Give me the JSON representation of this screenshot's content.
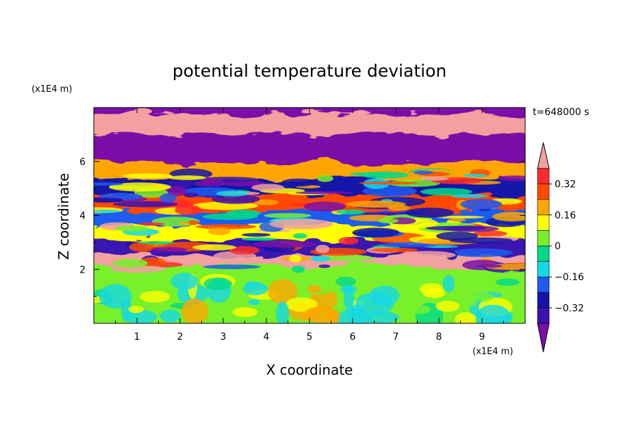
{
  "chart_data": {
    "type": "heatmap",
    "title": "potential temperature deviation",
    "xlabel": "X coordinate",
    "ylabel": "Z coordinate",
    "x_unit": "(x1E4 m)",
    "y_unit": "(x1E4 m)",
    "time_label": "t=648000 s",
    "xlim": [
      0,
      10
    ],
    "ylim": [
      0,
      8
    ],
    "x_ticks": [
      "1",
      "2",
      "3",
      "4",
      "5",
      "6",
      "7",
      "8",
      "9"
    ],
    "y_ticks": [
      "2",
      "4",
      "6"
    ],
    "colorbar": {
      "levels": [
        -0.4,
        -0.32,
        -0.24,
        -0.16,
        -0.08,
        0,
        0.08,
        0.16,
        0.24,
        0.32,
        0.4
      ],
      "tick_labels": [
        "0.32",
        "0.16",
        "0",
        "−0.16",
        "−0.32"
      ],
      "tick_values": [
        0.32,
        0.16,
        0,
        -0.16,
        -0.32
      ],
      "colors": [
        "#7b0fa8",
        "#3b12b0",
        "#1414a8",
        "#1e5bf0",
        "#14d8e6",
        "#00d98a",
        "#78f02a",
        "#ffff00",
        "#ffa500",
        "#ff4a00",
        "#ff2a2a",
        "#f2a0a0"
      ],
      "extend": "both"
    },
    "bands": [
      {
        "z": [
          7.4,
          8.0
        ],
        "value": -0.45,
        "note": ""
      },
      {
        "z": [
          6.7,
          7.4
        ],
        "value": 0.45
      },
      {
        "z": [
          5.6,
          6.7
        ],
        "value": -0.45
      },
      {
        "z": [
          5.0,
          5.6
        ],
        "value": 0.2
      },
      {
        "z": [
          4.4,
          5.0
        ],
        "value": -0.3
      },
      {
        "z": [
          3.8,
          4.4
        ],
        "value": 0.25
      },
      {
        "z": [
          3.3,
          3.8
        ],
        "value": -0.2
      },
      {
        "z": [
          2.7,
          3.3
        ],
        "value": 0.1
      },
      {
        "z": [
          2.2,
          2.7
        ],
        "value": -0.35
      },
      {
        "z": [
          1.8,
          2.2
        ],
        "value": 0.45
      },
      {
        "z": [
          0.0,
          1.8
        ],
        "value": 0.02
      }
    ]
  }
}
